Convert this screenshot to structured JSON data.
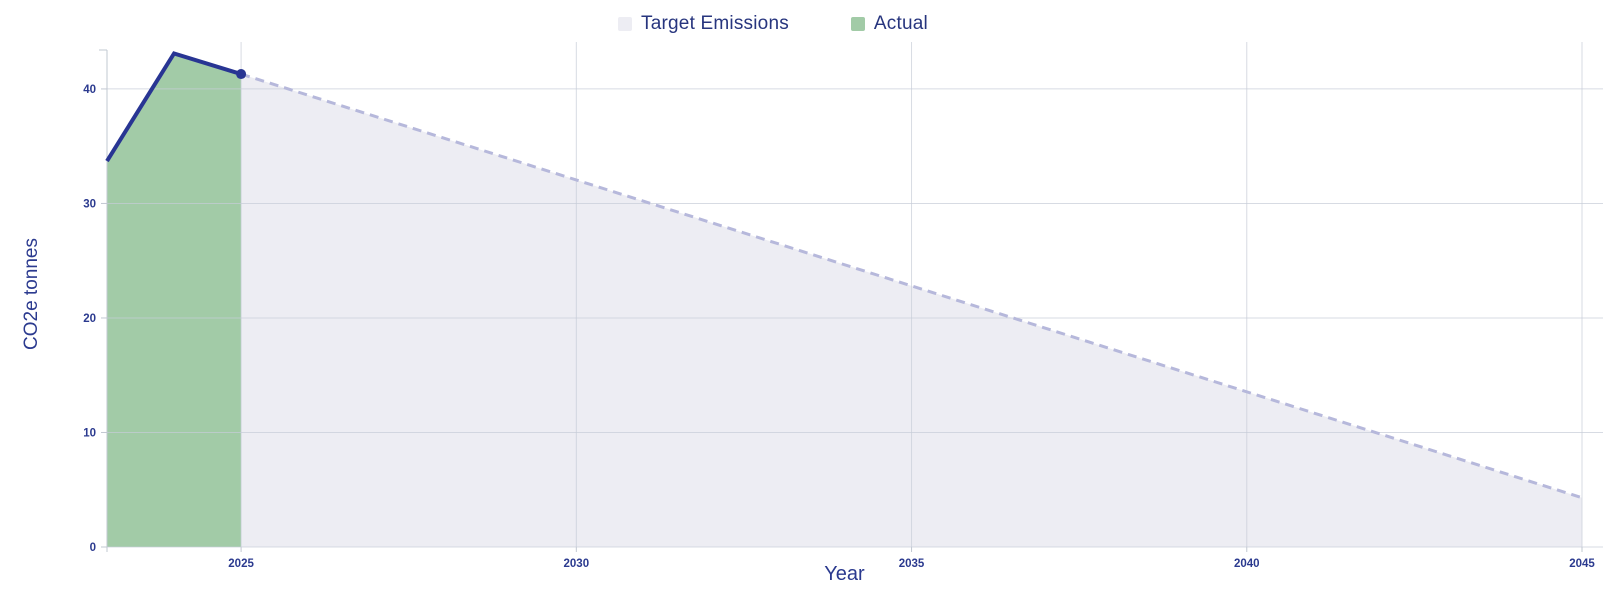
{
  "page": {
    "background": "#ffffff"
  },
  "chart_data": {
    "type": "area",
    "title": "",
    "xlabel": "Year",
    "ylabel": "CO2e tonnes",
    "xlim": [
      2023,
      2045
    ],
    "ylim": [
      0,
      43.4
    ],
    "x_ticks": [
      2025,
      2030,
      2035,
      2040,
      2045
    ],
    "y_ticks": [
      0,
      10,
      20,
      30,
      40
    ],
    "grid": true,
    "legend_position": "top-center",
    "colors": {
      "grid": "#c6ccd7",
      "axis": "#c2c8d2",
      "tick_label": "#2b3a8f",
      "axis_title": "#2b3a8f",
      "legend_text": "#27357e"
    },
    "series": [
      {
        "name": "Target Emissions",
        "x": [
          2025,
          2045
        ],
        "values": [
          41.3,
          4.3
        ],
        "fill": "#ededf3",
        "line_color": "#b6b8db",
        "line_style": "dashed",
        "line_width": 3,
        "end_marker": false
      },
      {
        "name": "Actual",
        "x": [
          2023,
          2024,
          2025
        ],
        "values": [
          33.7,
          43.1,
          41.3
        ],
        "fill": "#a2cba7",
        "line_color": "#283593",
        "line_style": "solid",
        "line_width": 4,
        "end_marker": true
      }
    ]
  }
}
